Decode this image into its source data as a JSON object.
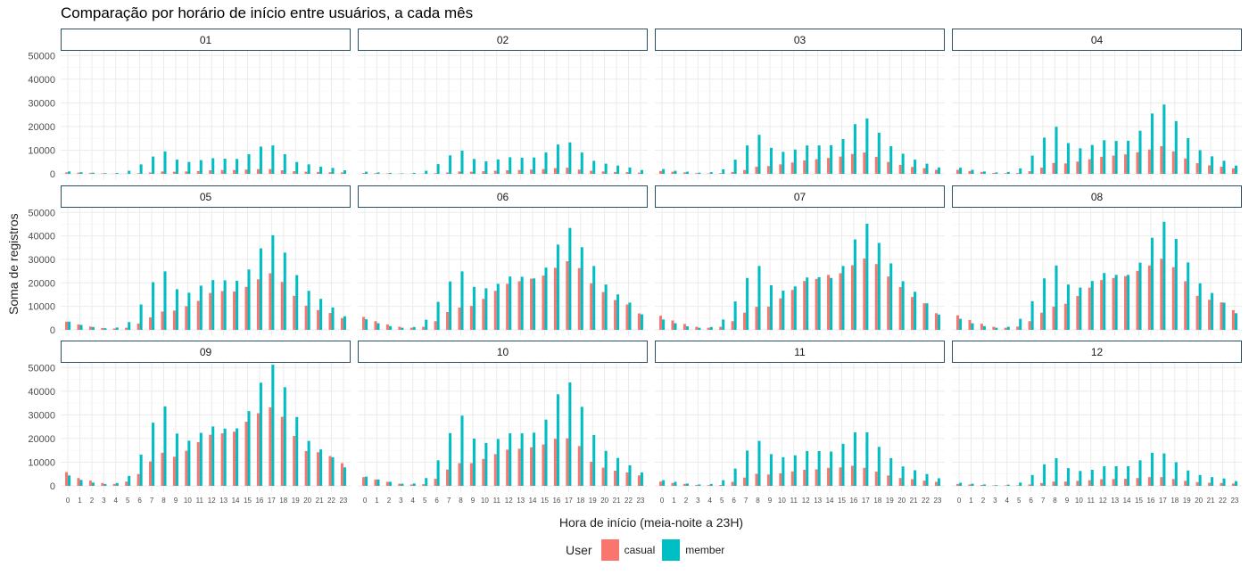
{
  "title": "Comparação por horário de início entre usuários, a cada mês",
  "colors": {
    "casual": "#F8766D",
    "member": "#00BFC4"
  },
  "chart_data": {
    "type": "bar",
    "title": "Comparação por horário de início entre usuários, a cada mês",
    "xlabel": "Hora de início (meia-noite a 23H)",
    "ylabel": "Soma de registros",
    "ylim": [
      0,
      52000
    ],
    "yticks": [
      0,
      10000,
      20000,
      30000,
      40000,
      50000
    ],
    "ytick_labels": [
      "0",
      "10000",
      "20000",
      "30000",
      "40000",
      "50000"
    ],
    "categories": [
      "0",
      "1",
      "2",
      "3",
      "4",
      "5",
      "6",
      "7",
      "8",
      "9",
      "10",
      "11",
      "12",
      "13",
      "14",
      "15",
      "16",
      "17",
      "18",
      "19",
      "20",
      "21",
      "22",
      "23"
    ],
    "legend": {
      "title": "User",
      "position": "bottom",
      "entries": [
        "casual",
        "member"
      ]
    },
    "grid": true,
    "panels": [
      {
        "label": "01",
        "series": [
          {
            "name": "casual",
            "values": [
              600,
              500,
              400,
              200,
              100,
              100,
              300,
              600,
              1000,
              900,
              1000,
              1200,
              1500,
              1600,
              1600,
              1800,
              2000,
              2000,
              1500,
              1100,
              900,
              800,
              700,
              600
            ]
          },
          {
            "name": "member",
            "values": [
              1000,
              700,
              500,
              300,
              400,
              1300,
              4000,
              7300,
              9500,
              6000,
              5000,
              5800,
              6600,
              6400,
              6300,
              8300,
              11500,
              12000,
              8300,
              5000,
              4000,
              3000,
              2500,
              1500
            ]
          }
        ]
      },
      {
        "label": "02",
        "series": [
          {
            "name": "casual",
            "values": [
              400,
              300,
              200,
              100,
              100,
              100,
              300,
              600,
              1000,
              900,
              1100,
              1300,
              1500,
              1600,
              1800,
              2000,
              2400,
              2600,
              1800,
              1300,
              1000,
              800,
              700,
              500
            ]
          },
          {
            "name": "member",
            "values": [
              900,
              600,
              400,
              200,
              400,
              1300,
              4100,
              7800,
              9800,
              6300,
              5300,
              6100,
              7000,
              6800,
              6900,
              9000,
              12400,
              13300,
              9000,
              5500,
              4300,
              3500,
              2700,
              1600
            ]
          }
        ]
      },
      {
        "label": "03",
        "series": [
          {
            "name": "casual",
            "values": [
              1200,
              900,
              600,
              300,
              200,
              300,
              800,
              1600,
              3000,
              3300,
              4000,
              4800,
              5700,
              6200,
              6700,
              7300,
              8400,
              9000,
              7200,
              5000,
              3800,
              2900,
              2400,
              1700
            ]
          },
          {
            "name": "member",
            "values": [
              2000,
              1300,
              900,
              500,
              700,
              1900,
              6000,
              12000,
              16500,
              11000,
              9300,
              10300,
              12000,
              12000,
              12100,
              14700,
              21000,
              23400,
              17400,
              11700,
              8500,
              6000,
              4300,
              2700
            ]
          }
        ]
      },
      {
        "label": "04",
        "series": [
          {
            "name": "casual",
            "values": [
              1700,
              1200,
              800,
              400,
              300,
              400,
              1100,
              2600,
              4600,
              4400,
              5200,
              6200,
              7200,
              7700,
              8200,
              9100,
              10300,
              11700,
              9500,
              6500,
              4500,
              3600,
              3000,
              2300
            ]
          },
          {
            "name": "member",
            "values": [
              2600,
              1700,
              1000,
              600,
              800,
              2300,
              7700,
              15300,
              19900,
              13000,
              10800,
              12200,
              14200,
              13900,
              14000,
              18200,
              25500,
              29300,
              22300,
              15100,
              10000,
              7400,
              5500,
              3500
            ]
          }
        ]
      },
      {
        "label": "05",
        "series": [
          {
            "name": "casual",
            "values": [
              3500,
              2300,
              1400,
              800,
              600,
              900,
              2700,
              5300,
              7800,
              8200,
              10100,
              12300,
              15700,
              16500,
              16300,
              18300,
              21500,
              24100,
              20400,
              14500,
              10300,
              8400,
              7200,
              5000
            ]
          },
          {
            "name": "member",
            "values": [
              3500,
              2100,
              1200,
              700,
              1000,
              3300,
              10800,
              20300,
              24900,
              17300,
              15800,
              18800,
              21200,
              21100,
              20900,
              25700,
              34700,
              40300,
              32900,
              23300,
              16600,
              13200,
              9500,
              5800
            ]
          }
        ]
      },
      {
        "label": "06",
        "series": [
          {
            "name": "casual",
            "values": [
              5500,
              3700,
              2300,
              1300,
              900,
              1300,
              3700,
              7600,
              9500,
              10200,
              13200,
              16600,
              19600,
              20700,
              21800,
              23100,
              26400,
              29200,
              26300,
              19800,
              16100,
              12700,
              10800,
              7000
            ]
          },
          {
            "name": "member",
            "values": [
              4500,
              2800,
              1600,
              900,
              1200,
              4300,
              11900,
              20600,
              24900,
              18300,
              17700,
              19600,
              22700,
              22600,
              21900,
              26500,
              36300,
              43400,
              35200,
              27200,
              19300,
              15100,
              11600,
              6600
            ]
          }
        ]
      },
      {
        "label": "07",
        "series": [
          {
            "name": "casual",
            "values": [
              6000,
              4000,
              2500,
              1300,
              900,
              1300,
              3700,
              7300,
              9800,
              9900,
              13400,
              17000,
              20800,
              21700,
              23400,
              24100,
              27500,
              30400,
              28000,
              22700,
              18200,
              14000,
              11300,
              7100
            ]
          },
          {
            "name": "member",
            "values": [
              4400,
              2800,
              1500,
              900,
              1200,
              4400,
              12100,
              22100,
              27200,
              19000,
              16700,
              18500,
              22300,
              22400,
              22100,
              27200,
              38500,
              45200,
              37000,
              28300,
              20700,
              16200,
              11300,
              6500
            ]
          }
        ]
      },
      {
        "label": "08",
        "series": [
          {
            "name": "casual",
            "values": [
              6200,
              4200,
              2600,
              1300,
              900,
              1400,
              3700,
              7300,
              9900,
              11100,
              14400,
              18000,
              21200,
              22100,
              22900,
              25100,
              27400,
              30300,
              26700,
              20700,
              14500,
              12800,
              11700,
              8400
            ]
          },
          {
            "name": "member",
            "values": [
              4700,
              2800,
              1600,
              900,
              1300,
              4700,
              12200,
              21900,
              27400,
              19300,
              18000,
              20800,
              24200,
              23400,
              23400,
              28600,
              39200,
              46000,
              38700,
              28700,
              19800,
              15700,
              11600,
              7100
            ]
          }
        ]
      },
      {
        "label": "09",
        "series": [
          {
            "name": "casual",
            "values": [
              5800,
              3300,
              2200,
              1200,
              800,
              1800,
              5000,
              10300,
              14000,
              12300,
              14800,
              18500,
              21600,
              22200,
              22900,
              27100,
              30700,
              33200,
              29200,
              21100,
              14700,
              14200,
              12600,
              9600
            ]
          },
          {
            "name": "member",
            "values": [
              4400,
              2500,
              1400,
              800,
              1200,
              4200,
              13200,
              26700,
              33600,
              22100,
              19100,
              22400,
              25100,
              24200,
              24300,
              31600,
              43600,
              51200,
              41700,
              29100,
              19000,
              15400,
              12100,
              7800
            ]
          }
        ]
      },
      {
        "label": "10",
        "series": [
          {
            "name": "casual",
            "values": [
              3700,
              2700,
              1700,
              900,
              600,
              700,
              3000,
              6900,
              9600,
              9600,
              11400,
              13400,
              15300,
              15700,
              16300,
              17500,
              19900,
              20100,
              16800,
              10200,
              7700,
              6400,
              5700,
              4400
            ]
          },
          {
            "name": "member",
            "values": [
              3900,
              2700,
              1700,
              900,
              1000,
              3300,
              10800,
              22300,
              29700,
              20000,
              18100,
              19800,
              22200,
              22200,
              22500,
              28000,
              38700,
              43700,
              33400,
              21500,
              14800,
              11800,
              8700,
              5700
            ]
          }
        ]
      },
      {
        "label": "11",
        "series": [
          {
            "name": "casual",
            "values": [
              1800,
              1200,
              800,
              400,
              300,
              400,
              1700,
              3500,
              5100,
              4800,
              5300,
              6100,
              6800,
              7000,
              7600,
              7800,
              8500,
              7600,
              6000,
              4400,
              3300,
              2800,
              2200,
              1700
            ]
          },
          {
            "name": "member",
            "values": [
              2400,
              1700,
              1000,
              600,
              800,
              2400,
              7300,
              14900,
              19000,
              13400,
              12100,
              12900,
              14700,
              14700,
              14500,
              17800,
              22600,
              22600,
              16500,
              11700,
              8200,
              6600,
              5000,
              3200
            ]
          }
        ]
      },
      {
        "label": "12",
        "series": [
          {
            "name": "casual",
            "values": [
              800,
              600,
              400,
              200,
              200,
              200,
              600,
              1200,
              1800,
              1800,
              2100,
              2400,
              2800,
              2900,
              3000,
              3300,
              3700,
              3700,
              2900,
              2100,
              1600,
              1300,
              1200,
              1000
            ]
          },
          {
            "name": "member",
            "values": [
              1300,
              900,
              600,
              300,
              500,
              1400,
              4600,
              9100,
              11700,
              7500,
              6300,
              6800,
              8300,
              8300,
              8300,
              10800,
              14000,
              13700,
              10000,
              6500,
              4600,
              3700,
              3100,
              2000
            ]
          }
        ]
      }
    ]
  }
}
